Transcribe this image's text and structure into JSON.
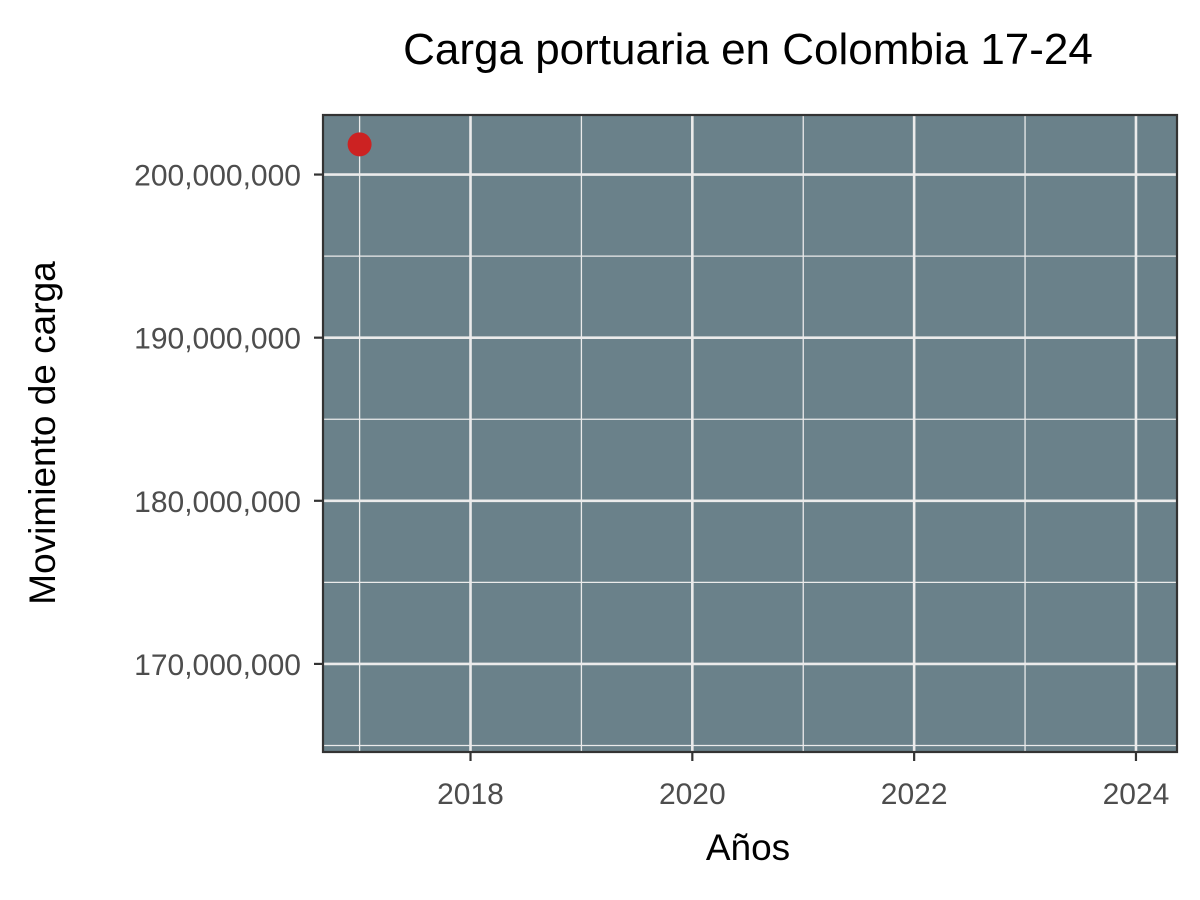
{
  "chart_data": {
    "type": "scatter",
    "title": "Carga portuaria en Colombia 17-24",
    "xlabel": "Años",
    "ylabel": "Movimiento de carga",
    "xlim": [
      2016.67,
      2024.37
    ],
    "ylim": [
      164600000,
      203650000
    ],
    "x_ticks": [
      2018,
      2020,
      2022,
      2024
    ],
    "x_minor_ticks": [
      2017,
      2019,
      2021,
      2023
    ],
    "y_ticks": [
      170000000,
      180000000,
      190000000,
      200000000
    ],
    "y_minor_ticks": [
      165000000,
      175000000,
      185000000,
      195000000
    ],
    "x_tick_labels": [
      "2018",
      "2020",
      "2022",
      "2024"
    ],
    "y_tick_labels": [
      "170,000,000",
      "180,000,000",
      "190,000,000",
      "200,000,000"
    ],
    "points": [
      {
        "x": 2017,
        "y": 201850000
      }
    ],
    "grid": true,
    "colors": {
      "panel_background": "#6a818a",
      "grid": "#ebebeb",
      "point": "#cc2222",
      "panel_border": "#333333",
      "tick_label": "#4d4d4d"
    }
  }
}
